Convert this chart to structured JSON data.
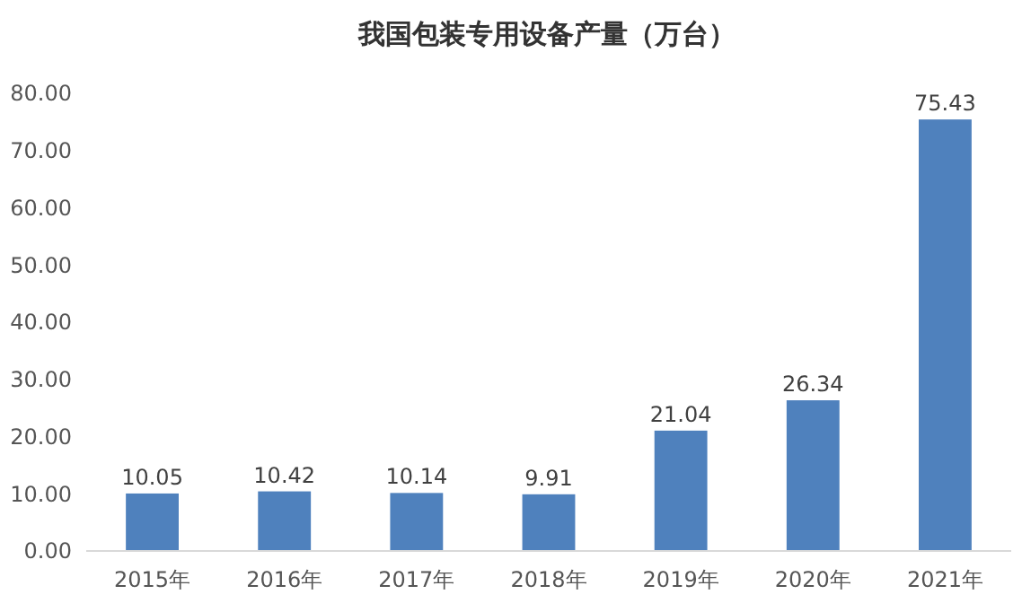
{
  "chart_data": {
    "type": "bar",
    "title": "我国包装专用设备产量（万台）",
    "categories": [
      "2015年",
      "2016年",
      "2017年",
      "2018年",
      "2019年",
      "2020年",
      "2021年"
    ],
    "values": [
      10.05,
      10.42,
      10.14,
      9.91,
      21.04,
      26.34,
      75.43
    ],
    "value_labels": [
      "10.05",
      "10.42",
      "10.14",
      "9.91",
      "21.04",
      "26.34",
      "75.43"
    ],
    "color": "#4f81bd",
    "ylim": [
      0,
      80
    ],
    "yticks": [
      {
        "value": 0,
        "label": "0.00"
      },
      {
        "value": 10,
        "label": "10.00"
      },
      {
        "value": 20,
        "label": "20.00"
      },
      {
        "value": 30,
        "label": "30.00"
      },
      {
        "value": 40,
        "label": "40.00"
      },
      {
        "value": 50,
        "label": "50.00"
      },
      {
        "value": 60,
        "label": "60.00"
      },
      {
        "value": 70,
        "label": "70.00"
      },
      {
        "value": 80,
        "label": "80.00"
      }
    ],
    "grid": false
  }
}
